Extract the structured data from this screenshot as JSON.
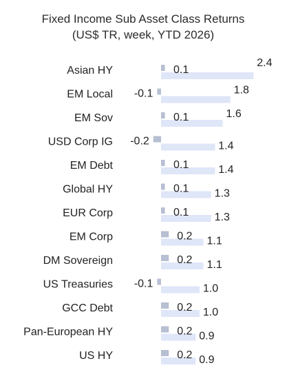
{
  "chart_data": {
    "type": "bar",
    "title_lines": [
      "Fixed Income Sub Asset Class Returns",
      "(US$ TR, week, YTD 2026)"
    ],
    "categories": [
      "Asian HY",
      "EM Local",
      "EM Sov",
      "USD Corp IG",
      "EM Debt",
      "Global HY",
      "EUR Corp",
      "EM Corp",
      "DM Sovereign",
      "US Treasuries",
      "GCC Debt",
      "Pan-European HY",
      "US HY"
    ],
    "series": [
      {
        "key": "week",
        "values": [
          0.1,
          -0.1,
          0.1,
          -0.2,
          0.1,
          0.1,
          0.1,
          0.2,
          0.2,
          -0.1,
          0.2,
          0.2,
          0.2
        ]
      },
      {
        "key": "ytd",
        "values": [
          2.4,
          1.8,
          1.6,
          1.4,
          1.4,
          1.3,
          1.3,
          1.1,
          1.1,
          1.0,
          1.0,
          0.9,
          0.9
        ]
      }
    ],
    "value_labels": {
      "week": [
        "0.1",
        "-0.1",
        "0.1",
        "-0.2",
        "0.1",
        "0.1",
        "0.1",
        "0.2",
        "0.2",
        "-0.1",
        "0.2",
        "0.2",
        "0.2"
      ],
      "ytd": [
        "2.4",
        "1.8",
        "1.6",
        "1.4",
        "1.4",
        "1.3",
        "1.3",
        "1.1",
        "1.1",
        "1.0",
        "1.0",
        "0.9",
        "0.9"
      ]
    },
    "colors": {
      "week": "#b7bfd3",
      "ytd": "#dfe6f8",
      "text": "#222222"
    },
    "legend": "none",
    "grid": false
  }
}
